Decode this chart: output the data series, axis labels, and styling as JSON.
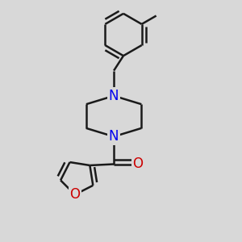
{
  "background_color": "#d8d8d8",
  "bond_color": "#1a1a1a",
  "N_color": "#0000ee",
  "O_color": "#cc0000",
  "bond_width": 1.8,
  "font_size": 12,
  "figsize": [
    3.0,
    3.0
  ],
  "dpi": 100,
  "xlim": [
    0,
    10
  ],
  "ylim": [
    0,
    10
  ]
}
